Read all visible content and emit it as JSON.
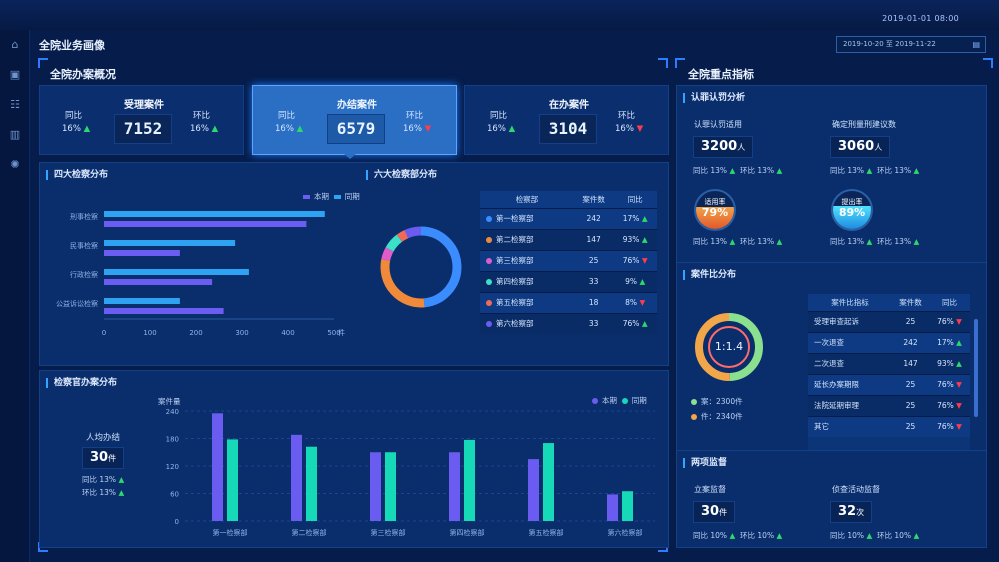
{
  "header": {
    "datetime": "2019-01-01  08:00"
  },
  "page": {
    "title": "全院业务画像",
    "date_range": "2019-10-20 至 2019-11-22"
  },
  "left": {
    "title": "全院办案概况",
    "cards": [
      {
        "title": "受理案件",
        "value": "7152",
        "tongbi_label": "同比",
        "tongbi": "16%",
        "tongbi_dir": "up",
        "huanbi_label": "环比",
        "huanbi": "16%",
        "huanbi_dir": "up",
        "active": false
      },
      {
        "title": "办结案件",
        "value": "6579",
        "tongbi_label": "同比",
        "tongbi": "16%",
        "tongbi_dir": "up",
        "huanbi_label": "环比",
        "huanbi": "16%",
        "huanbi_dir": "down",
        "active": true
      },
      {
        "title": "在办案件",
        "value": "3104",
        "tongbi_label": "同比",
        "tongbi": "16%",
        "tongbi_dir": "up",
        "huanbi_label": "环比",
        "huanbi": "16%",
        "huanbi_dir": "down",
        "active": false
      }
    ],
    "four_dist": {
      "title": "四大检察分布",
      "legend": [
        "本期",
        "同期"
      ],
      "unit": "件"
    },
    "six_dist": {
      "title": "六大检察部分布",
      "headers": [
        "检察部",
        "案件数",
        "同比"
      ],
      "rows": [
        {
          "name": "第一检察部",
          "count": "242",
          "pct": "17%",
          "dir": "up",
          "color": "#3a8cff"
        },
        {
          "name": "第二检察部",
          "count": "147",
          "pct": "93%",
          "dir": "up",
          "color": "#f08a3a"
        },
        {
          "name": "第三检察部",
          "count": "25",
          "pct": "76%",
          "dir": "down",
          "color": "#e05cc8"
        },
        {
          "name": "第四检察部",
          "count": "33",
          "pct": "9%",
          "dir": "up",
          "color": "#3ce0c8"
        },
        {
          "name": "第五检察部",
          "count": "18",
          "pct": "8%",
          "dir": "down",
          "color": "#f06a5a"
        },
        {
          "name": "第六检察部",
          "count": "33",
          "pct": "76%",
          "dir": "up",
          "color": "#6a5cf0"
        }
      ]
    },
    "prosecutor": {
      "title": "检察官办案分布",
      "avg_label": "人均办结",
      "avg_value": "30",
      "avg_unit": "件",
      "tongbi": "同比  13%",
      "huanbi": "环比  13%",
      "ylabel": "案件量",
      "legend": [
        "本期",
        "同期"
      ]
    }
  },
  "chart_data": [
    {
      "type": "bar",
      "title": "四大检察分布",
      "orientation": "horizontal",
      "categories": [
        "刑事检察",
        "民事检察",
        "行政检察",
        "公益诉讼检察"
      ],
      "series": [
        {
          "name": "本期",
          "values": [
            480,
            285,
            315,
            165
          ]
        },
        {
          "name": "同期",
          "values": [
            440,
            165,
            235,
            260
          ]
        }
      ],
      "xlim": [
        0,
        500
      ],
      "xticks": [
        "0",
        "100",
        "200",
        "300",
        "400",
        "500"
      ],
      "xunit": "件",
      "colors": [
        "#2ea3f2",
        "#6b5cf2"
      ]
    },
    {
      "type": "pie",
      "title": "六大检察部分布",
      "labels": [
        "第一检察部",
        "第二检察部",
        "第三检察部",
        "第四检察部",
        "第五检察部",
        "第六检察部"
      ],
      "values": [
        242,
        147,
        25,
        33,
        18,
        33
      ],
      "donut": true
    },
    {
      "type": "bar",
      "title": "检察官办案分布",
      "categories": [
        "第一检察部",
        "第二检察部",
        "第三检察部",
        "第四检察部",
        "第五检察部",
        "第六检察部"
      ],
      "series": [
        {
          "name": "本期",
          "values": [
            235,
            188,
            150,
            150,
            135,
            58
          ]
        },
        {
          "name": "同期",
          "values": [
            178,
            162,
            150,
            177,
            170,
            65
          ]
        }
      ],
      "ylim": [
        0,
        240
      ],
      "yticks": [
        "0",
        "60",
        "120",
        "180",
        "240"
      ],
      "ylabel": "案件量",
      "colors": [
        "#6a5cf0",
        "#16d9b8"
      ]
    },
    {
      "type": "pie",
      "title": "案件比分布",
      "center_label": "1:1.4",
      "values": [
        2300,
        2340
      ],
      "donut": true
    }
  ],
  "right": {
    "title": "全院重点指标",
    "renzui": {
      "title": "认罪认罚分析",
      "items": [
        {
          "label": "认罪认罚适用",
          "value": "3200",
          "unit": "人",
          "tongbi": "同比  13%",
          "huanbi": "环比  13%"
        },
        {
          "label": "确定刑量刑建议数",
          "value": "3060",
          "unit": "人",
          "tongbi": "同比  13%",
          "huanbi": "环比  13%"
        }
      ],
      "rates": [
        {
          "label": "适用率",
          "value": "79%",
          "tongbi": "同比  13%",
          "huanbi": "环比  13%",
          "fill": 0.79
        },
        {
          "label": "提出率",
          "value": "89%",
          "tongbi": "同比  13%",
          "huanbi": "环比  13%",
          "fill": 0.89
        }
      ]
    },
    "ratio": {
      "title": "案件比分布",
      "ring_label": "1:1.4",
      "legend": [
        {
          "label": "案：",
          "value": "2300件",
          "color": "#8be08f"
        },
        {
          "label": "件：",
          "value": "2340件",
          "color": "#f2a64a"
        }
      ],
      "headers": [
        "案件比指标",
        "案件数",
        "同比"
      ],
      "rows": [
        {
          "name": "受理审查起诉",
          "count": "25",
          "pct": "76%",
          "dir": "down"
        },
        {
          "name": "一次退查",
          "count": "242",
          "pct": "17%",
          "dir": "up"
        },
        {
          "name": "二次退查",
          "count": "147",
          "pct": "93%",
          "dir": "up"
        },
        {
          "name": "延长办案期限",
          "count": "25",
          "pct": "76%",
          "dir": "down"
        },
        {
          "name": "法院延期审理",
          "count": "25",
          "pct": "76%",
          "dir": "down"
        },
        {
          "name": "其它",
          "count": "25",
          "pct": "76%",
          "dir": "down"
        }
      ]
    },
    "supervise": {
      "title": "两项监督",
      "items": [
        {
          "label": "立案监督",
          "value": "30",
          "unit": "件",
          "tongbi": "同比  10%",
          "huanbi": "环比  10%"
        },
        {
          "label": "侦查活动监督",
          "value": "32",
          "unit": "次",
          "tongbi": "同比  10%",
          "huanbi": "环比  10%"
        }
      ]
    }
  }
}
